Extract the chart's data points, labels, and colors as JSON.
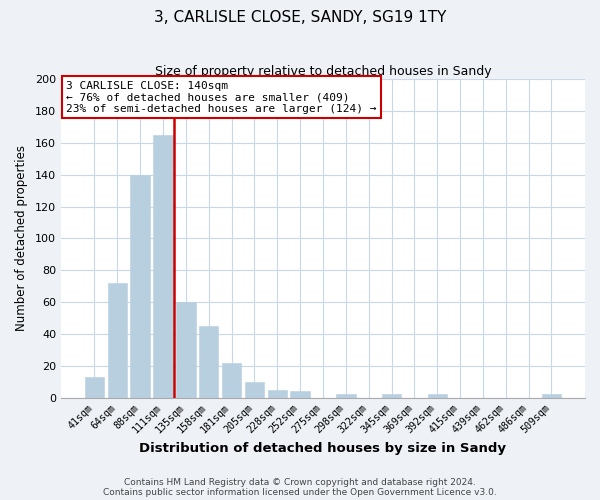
{
  "title1": "3, CARLISLE CLOSE, SANDY, SG19 1TY",
  "title2": "Size of property relative to detached houses in Sandy",
  "xlabel": "Distribution of detached houses by size in Sandy",
  "ylabel": "Number of detached properties",
  "bar_labels": [
    "41sqm",
    "64sqm",
    "88sqm",
    "111sqm",
    "135sqm",
    "158sqm",
    "181sqm",
    "205sqm",
    "228sqm",
    "252sqm",
    "275sqm",
    "298sqm",
    "322sqm",
    "345sqm",
    "369sqm",
    "392sqm",
    "415sqm",
    "439sqm",
    "462sqm",
    "486sqm",
    "509sqm"
  ],
  "bar_values": [
    13,
    72,
    140,
    165,
    60,
    45,
    22,
    10,
    5,
    4,
    0,
    2,
    0,
    2,
    0,
    2,
    0,
    0,
    0,
    0,
    2
  ],
  "bar_color": "#b8cfe0",
  "bar_edge_color": "#b8cfe0",
  "grid_color": "#c8d8e8",
  "background_color": "#ffffff",
  "fig_background_color": "#eef2f7",
  "vline_color": "#cc0000",
  "vline_x_index": 3.5,
  "ylim": [
    0,
    200
  ],
  "yticks": [
    0,
    20,
    40,
    60,
    80,
    100,
    120,
    140,
    160,
    180,
    200
  ],
  "annotation_title": "3 CARLISLE CLOSE: 140sqm",
  "annotation_line1": "← 76% of detached houses are smaller (409)",
  "annotation_line2": "23% of semi-detached houses are larger (124) →",
  "annotation_box_color": "#ffffff",
  "annotation_border_color": "#cc0000",
  "footer1": "Contains HM Land Registry data © Crown copyright and database right 2024.",
  "footer2": "Contains public sector information licensed under the Open Government Licence v3.0."
}
